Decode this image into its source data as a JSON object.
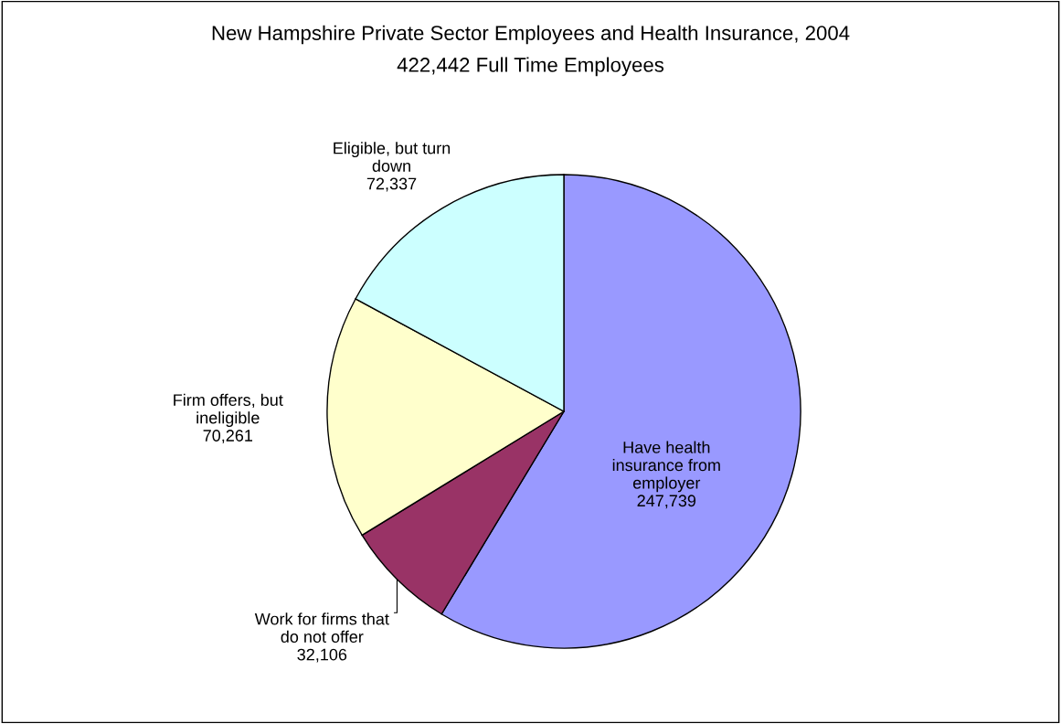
{
  "chart_data": {
    "type": "pie",
    "title": "New Hampshire Private Sector Employees and Health Insurance, 2004",
    "subtitle": "422,442 Full Time Employees",
    "categories": [
      "Have health\ninsurance from\nemployer",
      "Work for firms that\ndo not offer",
      "Firm offers, but\nineligible",
      "Eligible, but turn\ndown"
    ],
    "values": [
      247739,
      32106,
      70261,
      72337
    ],
    "colors": [
      "#9999ff",
      "#993366",
      "#ffffcc",
      "#ccffff"
    ],
    "value_labels": [
      "247,739",
      "32,106",
      "70,261",
      "72,337"
    ],
    "legend": false
  }
}
